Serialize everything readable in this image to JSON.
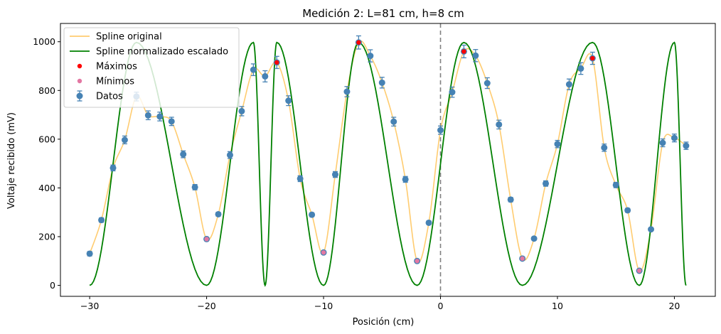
{
  "chart_data": {
    "type": "line",
    "title": "Medición 2: L=81 cm, h=8 cm",
    "xlabel": "Posición (cm)",
    "ylabel": "Voltaje recibido (mV)",
    "xlim": [
      -32.5,
      23.5
    ],
    "ylim": [
      -45,
      1075
    ],
    "xticks": [
      -30,
      -20,
      -10,
      0,
      10,
      20
    ],
    "yticks": [
      0,
      200,
      400,
      600,
      800,
      1000
    ],
    "vline_x": 0,
    "legend_position": "upper-left",
    "colors": {
      "spline_original": "#ffcc70",
      "spline_scaled": "#008000",
      "maxima": "#ff0000",
      "minima": "#e377a2",
      "data": "#4682b4",
      "vline": "#808080"
    },
    "legend": [
      {
        "label": "Spline original",
        "kind": "line",
        "color": "#ffcc70"
      },
      {
        "label": "Spline normalizado escalado",
        "kind": "line",
        "color": "#008000"
      },
      {
        "label": "Máximos",
        "kind": "dot",
        "color": "#ff0000"
      },
      {
        "label": "Mínimos",
        "kind": "dot",
        "color": "#e377a2"
      },
      {
        "label": "Datos",
        "kind": "errorbar",
        "color": "#4682b4"
      }
    ],
    "series": [
      {
        "name": "Datos",
        "x": [
          -30,
          -29,
          -28,
          -27,
          -26,
          -25,
          -24,
          -23,
          -22,
          -21,
          -20,
          -19,
          -18,
          -17,
          -16,
          -15,
          -14,
          -13,
          -12,
          -11,
          -10,
          -9,
          -8,
          -7,
          -6,
          -5,
          -4,
          -3,
          -2,
          -1,
          0,
          1,
          2,
          3,
          4,
          5,
          6,
          7,
          8,
          9,
          10,
          11,
          12,
          13,
          14,
          15,
          16,
          17,
          18,
          19,
          20,
          21
        ],
        "y": [
          130,
          268,
          482,
          597,
          775,
          698,
          693,
          673,
          538,
          403,
          190,
          292,
          535,
          715,
          885,
          858,
          915,
          758,
          438,
          290,
          135,
          455,
          795,
          997,
          942,
          832,
          672,
          435,
          100,
          257,
          637,
          793,
          960,
          943,
          830,
          660,
          352,
          110,
          192,
          418,
          580,
          825,
          890,
          932,
          565,
          412,
          308,
          60,
          230,
          585,
          605,
          573
        ],
        "yerr": [
          9,
          9,
          12,
          16,
          18,
          18,
          18,
          17,
          14,
          11,
          6,
          8,
          14,
          19,
          24,
          23,
          25,
          20,
          12,
          8,
          5,
          12,
          21,
          27,
          25,
          22,
          18,
          12,
          4,
          7,
          17,
          21,
          26,
          25,
          22,
          18,
          9,
          4,
          6,
          11,
          15,
          22,
          24,
          25,
          15,
          11,
          8,
          3,
          6,
          16,
          16,
          15
        ]
      },
      {
        "name": "Máximos",
        "x": [
          -14,
          -7,
          2,
          13
        ],
        "y": [
          915,
          997,
          960,
          932
        ]
      },
      {
        "name": "Mínimos",
        "x": [
          -20,
          -10,
          -2,
          7,
          17
        ],
        "y": [
          190,
          135,
          100,
          110,
          60
        ]
      }
    ]
  }
}
